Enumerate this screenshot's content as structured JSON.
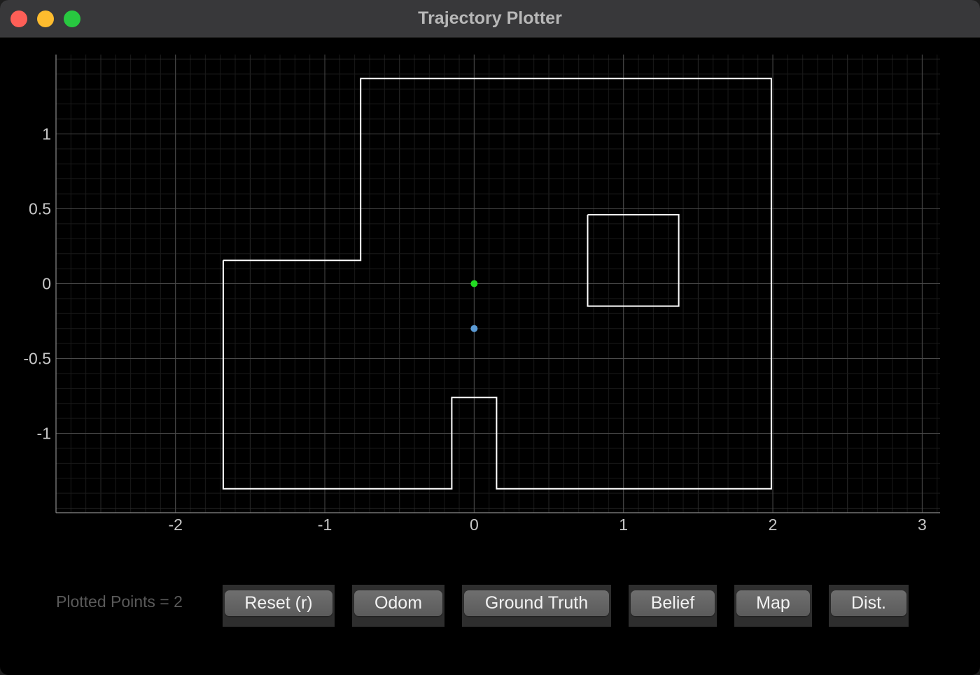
{
  "window": {
    "title": "Trajectory Plotter"
  },
  "chart_data": {
    "type": "scatter",
    "xlim": [
      -2.8,
      3.12
    ],
    "ylim": [
      -1.53,
      1.53
    ],
    "x_ticks": [
      -2,
      -1,
      0,
      1,
      2,
      3
    ],
    "y_ticks": [
      1,
      0.5,
      0,
      -0.5,
      -1
    ],
    "grid": true,
    "map_walls": [
      [
        [
          -1.68,
          0.155
        ],
        [
          -0.76,
          0.155
        ],
        [
          -0.76,
          1.37
        ],
        [
          1.99,
          1.37
        ],
        [
          1.99,
          -1.37
        ],
        [
          0.15,
          -1.37
        ],
        [
          0.15,
          -0.76
        ],
        [
          -0.15,
          -0.76
        ],
        [
          -0.15,
          -1.37
        ],
        [
          -1.68,
          -1.37
        ],
        [
          -1.68,
          0.155
        ]
      ],
      [
        [
          0.76,
          0.46
        ],
        [
          1.37,
          0.46
        ],
        [
          1.37,
          -0.15
        ],
        [
          0.76,
          -0.15
        ],
        [
          0.76,
          0.46
        ]
      ]
    ],
    "series": [
      {
        "color": "#22dd22",
        "points": [
          [
            0,
            0
          ]
        ]
      },
      {
        "color": "#5b9bd5",
        "points": [
          [
            0,
            -0.3
          ]
        ]
      }
    ]
  },
  "footer": {
    "plotted_points_label": "Plotted Points = 2",
    "buttons": [
      {
        "label": "Reset (r)"
      },
      {
        "label": "Odom"
      },
      {
        "label": "Ground Truth"
      },
      {
        "label": "Belief"
      },
      {
        "label": "Map"
      },
      {
        "label": "Dist."
      }
    ]
  }
}
